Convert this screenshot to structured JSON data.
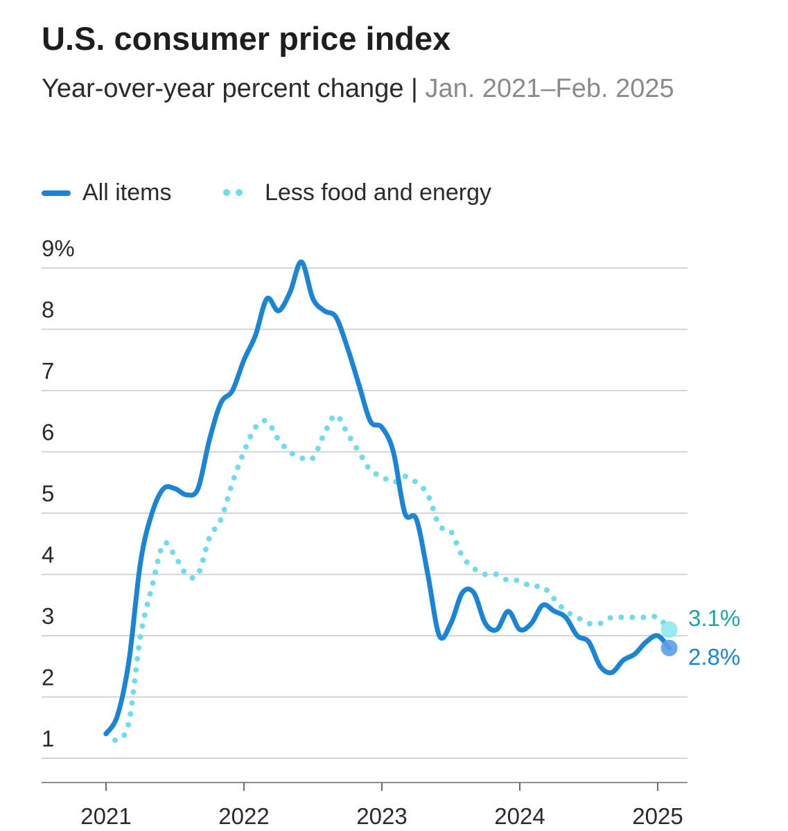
{
  "chart_data": {
    "type": "line",
    "title": "U.S. consumer price index",
    "subtitle": "Year-over-year percent change",
    "subtitle_separator": "|",
    "date_range": "Jan. 2021–Feb. 2025",
    "xlabel": "",
    "ylabel": "",
    "ylim": [
      1,
      9
    ],
    "y_ticks": [
      {
        "value": 9,
        "label": "9%"
      },
      {
        "value": 8,
        "label": "8"
      },
      {
        "value": 7,
        "label": "7"
      },
      {
        "value": 6,
        "label": "6"
      },
      {
        "value": 5,
        "label": "5"
      },
      {
        "value": 4,
        "label": "4"
      },
      {
        "value": 3,
        "label": "3"
      },
      {
        "value": 2,
        "label": "2"
      },
      {
        "value": 1,
        "label": "1"
      }
    ],
    "x_ticks": [
      {
        "value": 2021,
        "label": "2021"
      },
      {
        "value": 2022,
        "label": "2022"
      },
      {
        "value": 2023,
        "label": "2023"
      },
      {
        "value": 2024,
        "label": "2024"
      },
      {
        "value": 2025,
        "label": "2025"
      }
    ],
    "grid": true,
    "legend_position": "top-left",
    "x_start": "Jan. 2021",
    "x_step": "monthly",
    "series": [
      {
        "name": "All items",
        "style": "solid",
        "color": "#1a84d6",
        "end_marker_color": "#5a9ee8",
        "end_label": "2.8%",
        "end_label_color": "#1a84d6",
        "values": [
          1.4,
          1.7,
          2.6,
          4.2,
          5.0,
          5.4,
          5.4,
          5.3,
          5.4,
          6.2,
          6.8,
          7.0,
          7.5,
          7.9,
          8.5,
          8.3,
          8.6,
          9.1,
          8.5,
          8.3,
          8.2,
          7.7,
          7.1,
          6.5,
          6.4,
          6.0,
          5.0,
          4.9,
          4.0,
          3.0,
          3.2,
          3.7,
          3.7,
          3.2,
          3.1,
          3.4,
          3.1,
          3.2,
          3.5,
          3.4,
          3.3,
          3.0,
          2.9,
          2.5,
          2.4,
          2.6,
          2.7,
          2.9,
          3.0,
          2.8
        ]
      },
      {
        "name": "Less food and energy",
        "style": "dotted",
        "color": "#6fdcec",
        "end_marker_color": "#8ee8f2",
        "end_label": "3.1%",
        "end_label_color": "#19a4ac",
        "values": [
          1.4,
          1.3,
          1.6,
          3.0,
          3.8,
          4.5,
          4.3,
          4.0,
          4.0,
          4.6,
          4.9,
          5.5,
          6.0,
          6.4,
          6.5,
          6.2,
          6.0,
          5.9,
          5.9,
          6.3,
          6.6,
          6.3,
          6.0,
          5.7,
          5.6,
          5.5,
          5.6,
          5.5,
          5.3,
          4.8,
          4.7,
          4.3,
          4.1,
          4.0,
          4.0,
          3.9,
          3.9,
          3.8,
          3.8,
          3.6,
          3.4,
          3.3,
          3.2,
          3.2,
          3.3,
          3.3,
          3.3,
          3.3,
          3.3,
          3.1
        ]
      }
    ]
  }
}
